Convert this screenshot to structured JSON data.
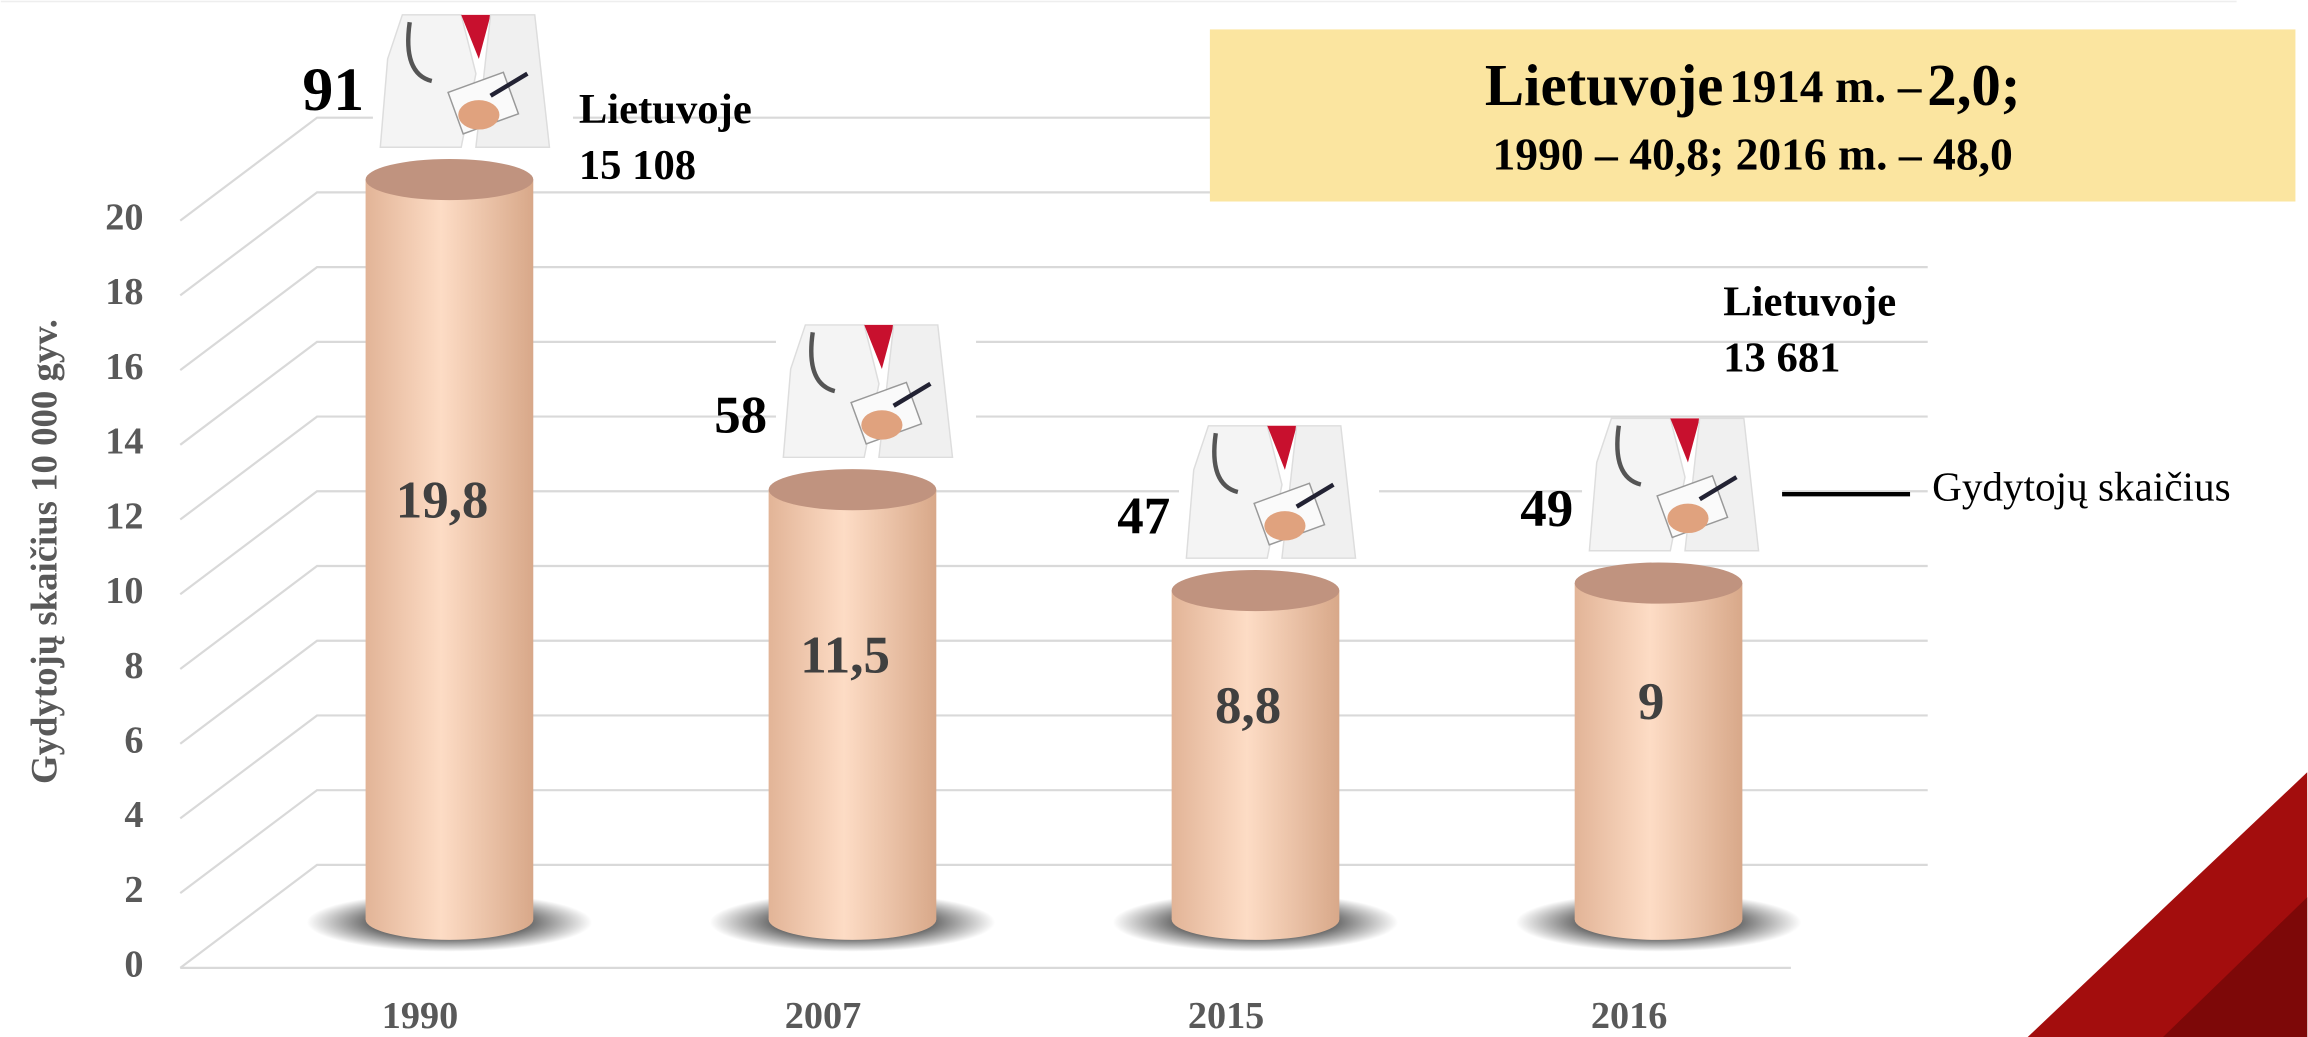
{
  "chart_data": {
    "type": "bar",
    "y_axis_label": "Gydytojų skaičius 10 000 gyv.",
    "categories": [
      "1990",
      "2007",
      "2015",
      "2016"
    ],
    "values": [
      19.8,
      11.5,
      8.8,
      9
    ],
    "value_labels": [
      "19,8",
      "11,5",
      "8,8",
      "9"
    ],
    "doctors": [
      91,
      58,
      47,
      49
    ],
    "ylim": [
      0,
      20
    ],
    "yticks": [
      0,
      2,
      4,
      6,
      8,
      10,
      12,
      14,
      16,
      18,
      20
    ],
    "grid": true,
    "color": "#fbd3b6",
    "annotations": {
      "lt1990": [
        "Lietuvoje",
        "15 108"
      ],
      "lt2016": [
        "Lietuvoje",
        "13 681"
      ],
      "arrow_label": "Gydytojų skaičius"
    },
    "box": {
      "line1": [
        "Lietuvoje",
        "1914 m. –",
        "2,0;"
      ],
      "line2": "1990 – 40,8; 2016 m. – 48,0"
    }
  }
}
